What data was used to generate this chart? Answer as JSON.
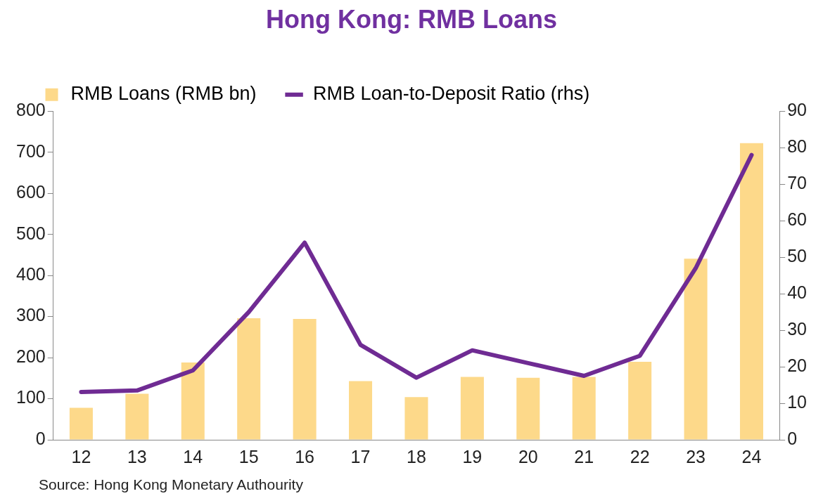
{
  "chart_data": {
    "type": "bar",
    "title": "Hong Kong: RMB Loans",
    "categories": [
      "12",
      "13",
      "14",
      "15",
      "16",
      "17",
      "18",
      "19",
      "20",
      "21",
      "22",
      "23",
      "24"
    ],
    "series": [
      {
        "name": "RMB Loans (RMB bn)",
        "color": "#fdd98a",
        "values": [
          78,
          112,
          188,
          296,
          294,
          143,
          104,
          153,
          151,
          153,
          190,
          441,
          722
        ]
      },
      {
        "name": "RMB Loan-to-Deposit Ratio (rhs)",
        "type": "line",
        "axis": "y2",
        "color": "#6f2b93",
        "values": [
          13.1,
          13.5,
          19,
          35,
          54,
          26,
          17,
          24.5,
          21,
          17.5,
          23,
          47,
          78
        ]
      }
    ],
    "ylim": [
      0,
      800
    ],
    "yticks": [
      0,
      100,
      200,
      300,
      400,
      500,
      600,
      700,
      800
    ],
    "y2lim": [
      0,
      90
    ],
    "y2ticks": [
      0,
      10,
      20,
      30,
      40,
      50,
      60,
      70,
      80,
      90
    ],
    "grid": false,
    "legend": "top",
    "marker": "none",
    "line_style": "solid",
    "annotations": [
      "Source: Hong Kong Monetary Authourity"
    ]
  }
}
